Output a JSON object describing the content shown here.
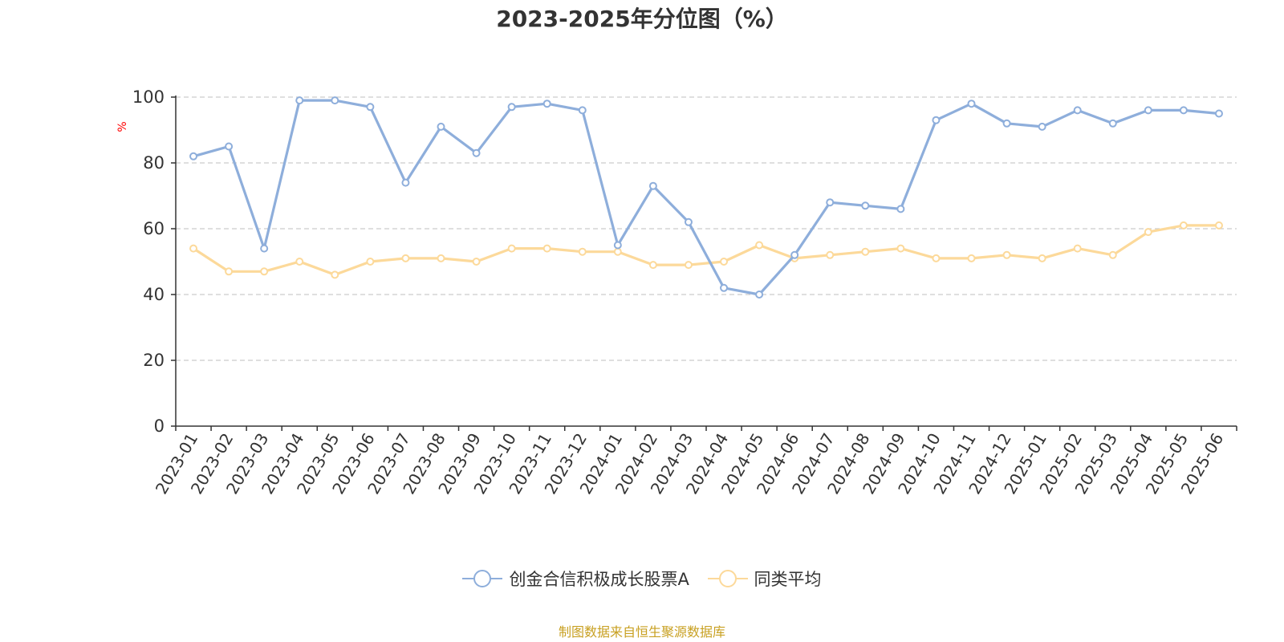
{
  "chart_data": {
    "type": "line",
    "title": "2023-2025年分位图（%）",
    "ylabel": "%",
    "ylim": [
      0,
      100
    ],
    "yticks": [
      "0",
      "20",
      "40",
      "60",
      "80",
      "100"
    ],
    "grid": true,
    "legend_position": "bottom",
    "categories": [
      "2023-01",
      "2023-02",
      "2023-03",
      "2023-04",
      "2023-05",
      "2023-06",
      "2023-07",
      "2023-08",
      "2023-09",
      "2023-10",
      "2023-11",
      "2023-12",
      "2024-01",
      "2024-02",
      "2024-03",
      "2024-04",
      "2024-05",
      "2024-06",
      "2024-07",
      "2024-08",
      "2024-09",
      "2024-10",
      "2024-11",
      "2024-12",
      "2025-01",
      "2025-02",
      "2025-03",
      "2025-04",
      "2025-05",
      "2025-06"
    ],
    "series": [
      {
        "name": "创金合信积极成长股票A",
        "color": "#8eaedb",
        "values": [
          82,
          85,
          54,
          99,
          99,
          97,
          74,
          91,
          83,
          97,
          98,
          96,
          55,
          73,
          62,
          42,
          40,
          52,
          68,
          67,
          66,
          93,
          98,
          92,
          91,
          96,
          92,
          96,
          96,
          95
        ]
      },
      {
        "name": "同类平均",
        "color": "#fcd99a",
        "values": [
          54,
          47,
          47,
          50,
          46,
          50,
          51,
          51,
          50,
          54,
          54,
          53,
          53,
          49,
          49,
          50,
          55,
          51,
          52,
          53,
          54,
          51,
          51,
          52,
          51,
          54,
          52,
          59,
          61,
          61
        ]
      }
    ]
  },
  "source_note": "制图数据来自恒生聚源数据库",
  "colors": {
    "axis": "#333333",
    "grid": "#cccccc",
    "ylabel": "#ff0000",
    "source": "#c8a021"
  }
}
